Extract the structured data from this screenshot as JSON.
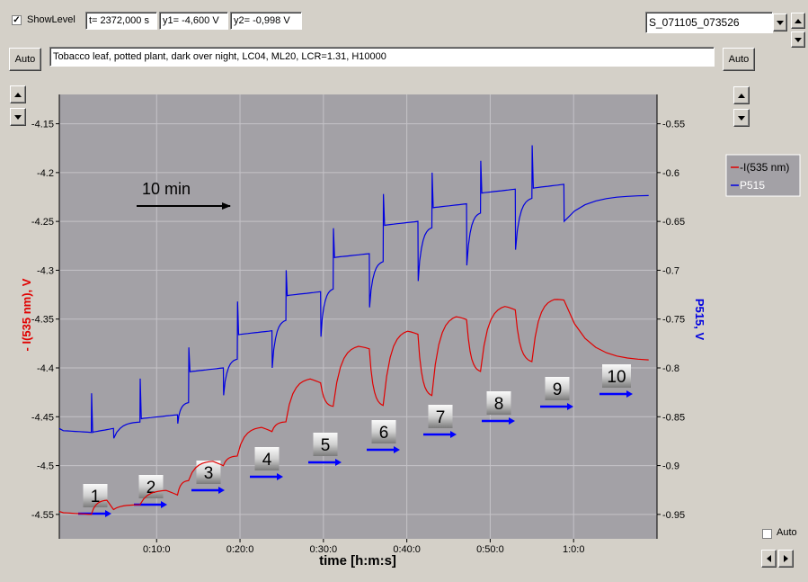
{
  "toolbar": {
    "show_level_label": "ShowLevel",
    "show_level_checked": true,
    "t_field": "t= 2372,000 s",
    "y1_field": "y1= -4,600 V",
    "y2_field": "y2= -0,998 V",
    "dataset_select": "S_071105_073526",
    "auto_left_label": "Auto",
    "auto_right_label": "Auto",
    "description": "Tobacco leaf, potted plant, dark over night, LC04, ML20, LCR=1.31, H10000"
  },
  "footer": {
    "auto_checkbox_label": "Auto",
    "auto_checked": false
  },
  "colors": {
    "plot_bg": "#a3a1a6",
    "window_bg": "#d4d0c8",
    "red_series": "#e00000",
    "blue_series": "#0000e0",
    "annotation_arrow": "#000000",
    "marker_arrow": "#0000ff"
  },
  "chart_data": {
    "type": "line",
    "xlabel": "time [h:m:s]",
    "ylabel_left": "- I(535 nm), V",
    "ylabel_right": "P515, V",
    "xlim_seconds": [
      -100,
      4200
    ],
    "x_ticks": [
      "0:10:0",
      "0:20:0",
      "0:30:0",
      "0:40:0",
      "0:50:0",
      "1:0:0"
    ],
    "x_tick_values_seconds": [
      600,
      1200,
      1800,
      2400,
      3000,
      3600
    ],
    "ylim_left": [
      -4.575,
      -4.12
    ],
    "y_ticks_left": [
      "-4.15",
      "-4.2",
      "-4.25",
      "-4.3",
      "-4.35",
      "-4.4",
      "-4.45",
      "-4.5",
      "-4.55"
    ],
    "y_tick_values_left": [
      -4.15,
      -4.2,
      -4.25,
      -4.3,
      -4.35,
      -4.4,
      -4.45,
      -4.5,
      -4.55
    ],
    "ylim_right": [
      -0.975,
      -0.52
    ],
    "y_ticks_right": [
      "-0.55",
      "-0.6",
      "-0.65",
      "-0.7",
      "-0.75",
      "-0.8",
      "-0.85",
      "-0.9",
      "-0.95"
    ],
    "y_tick_values_right": [
      -0.55,
      -0.6,
      -0.65,
      -0.7,
      -0.75,
      -0.8,
      -0.85,
      -0.9,
      -0.95
    ],
    "grid": true,
    "legend_position": "right",
    "legend": [
      "-I(535 nm)",
      "P515"
    ],
    "annotation": {
      "text": "10 min",
      "arrow": "right"
    },
    "marker_labels": [
      "1",
      "2",
      "3",
      "4",
      "5",
      "6",
      "7",
      "8",
      "9",
      "10"
    ],
    "cycles": [
      {
        "on_s": 130,
        "off_s": 290,
        "red_base": -4.55,
        "red_peak": -4.535,
        "red_end": -4.545,
        "blue_base": -0.866,
        "blue_spike": -0.826,
        "blue_on": -0.862,
        "blue_off_dip": -0.872
      },
      {
        "on_s": 480,
        "off_s": 750,
        "red_base": -4.54,
        "red_peak": -4.525,
        "red_end": -4.53,
        "blue_base": -0.855,
        "blue_spike": -0.811,
        "blue_on": -0.848,
        "blue_off_dip": -0.857
      },
      {
        "on_s": 830,
        "off_s": 1080,
        "red_base": -4.515,
        "red_peak": -4.495,
        "red_end": -4.5,
        "blue_base": -0.835,
        "blue_spike": -0.779,
        "blue_on": -0.8,
        "blue_off_dip": -0.828
      },
      {
        "on_s": 1180,
        "off_s": 1430,
        "red_base": -4.49,
        "red_peak": -4.46,
        "red_end": -4.465,
        "blue_base": -0.79,
        "blue_spike": -0.732,
        "blue_on": -0.762,
        "blue_off_dip": -0.8
      },
      {
        "on_s": 1530,
        "off_s": 1780,
        "red_base": -4.455,
        "red_peak": -4.41,
        "red_end": -4.415,
        "blue_base": -0.75,
        "blue_spike": -0.7,
        "blue_on": -0.722,
        "blue_off_dip": -0.768
      },
      {
        "on_s": 1870,
        "off_s": 2130,
        "red_base": -4.44,
        "red_peak": -4.376,
        "red_end": -4.38,
        "blue_base": -0.718,
        "blue_spike": -0.657,
        "blue_on": -0.683,
        "blue_off_dip": -0.738
      },
      {
        "on_s": 2230,
        "off_s": 2480,
        "red_base": -4.44,
        "red_peak": -4.36,
        "red_end": -4.365,
        "blue_base": -0.69,
        "blue_spike": -0.622,
        "blue_on": -0.65,
        "blue_off_dip": -0.711
      },
      {
        "on_s": 2580,
        "off_s": 2830,
        "red_base": -4.43,
        "red_peak": -4.345,
        "red_end": -4.35,
        "blue_base": -0.655,
        "blue_spike": -0.6,
        "blue_on": -0.632,
        "blue_off_dip": -0.695
      },
      {
        "on_s": 2930,
        "off_s": 3180,
        "red_base": -4.405,
        "red_peak": -4.335,
        "red_end": -4.34,
        "blue_base": -0.64,
        "blue_spike": -0.588,
        "blue_on": -0.617,
        "blue_off_dip": -0.679
      },
      {
        "on_s": 3300,
        "off_s": 3530,
        "red_base": -4.395,
        "red_peak": -4.328,
        "red_end": -4.33,
        "blue_base": -0.625,
        "blue_spike": -0.572,
        "blue_on": -0.612,
        "blue_off_dip": -0.65
      }
    ],
    "final": {
      "red": -4.393,
      "blue": -0.623
    }
  }
}
